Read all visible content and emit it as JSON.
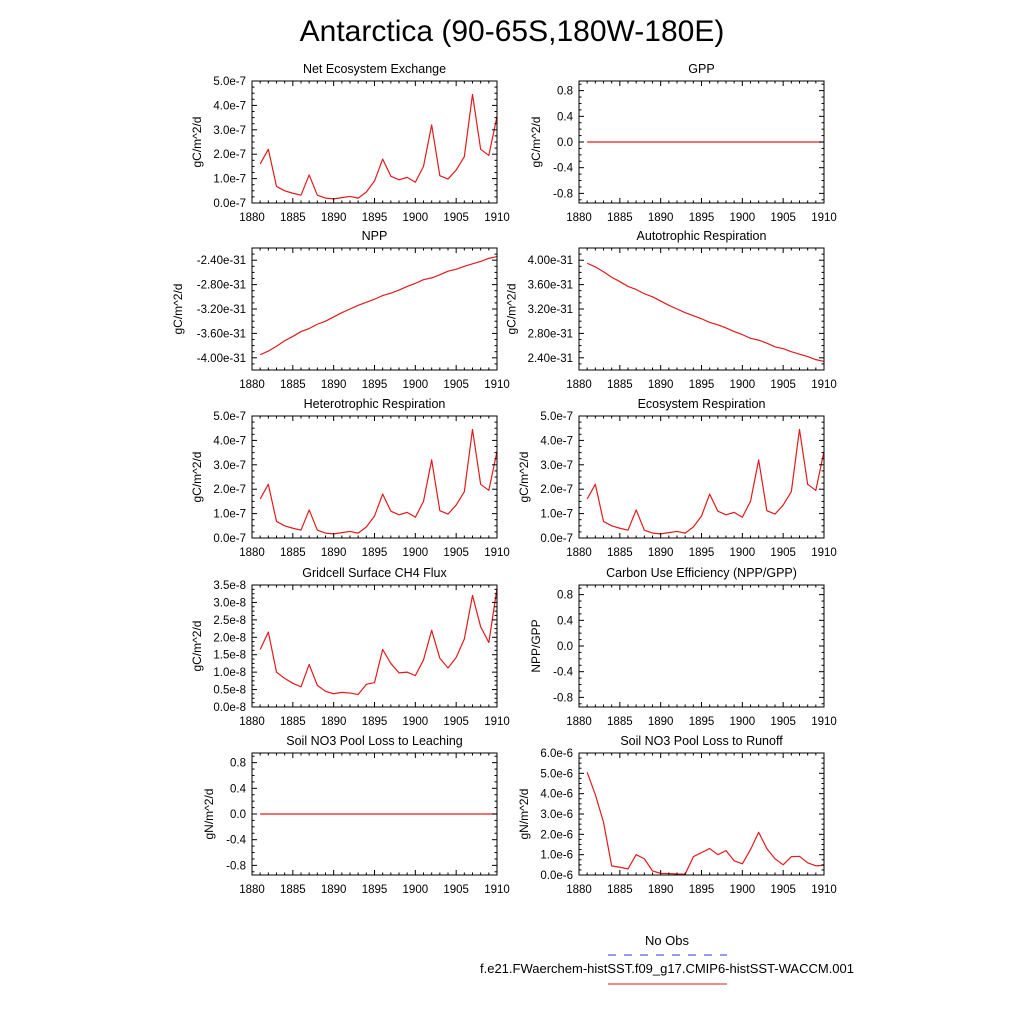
{
  "figure": {
    "title": "Antarctica (90-65S,180W-180E)"
  },
  "legend": {
    "items": [
      {
        "label": "No Obs",
        "color": "#3333cc",
        "style": "dashed"
      },
      {
        "label": "f.e21.FWaerchem-histSST.f09_g17.CMIP6-histSST-WACCM.001",
        "color": "#e31a1c",
        "style": "solid"
      }
    ]
  },
  "colors": {
    "series": "#e31a1c",
    "axis": "#000000"
  },
  "chart_data": [
    {
      "type": "line",
      "title": "Net Ecosystem Exchange",
      "ylabel": "gC/m^2/d",
      "xlim": [
        1880,
        1910
      ],
      "ylim": [
        0,
        5e-07
      ],
      "xticks": [
        1880,
        1885,
        1890,
        1895,
        1900,
        1905,
        1910
      ],
      "yticks": [
        0,
        1e-07,
        2e-07,
        3e-07,
        4e-07,
        5e-07
      ],
      "ytick_labels": [
        "0.0e-7",
        "1.0e-7",
        "2.0e-7",
        "3.0e-7",
        "4.0e-7",
        "5.0e-7"
      ],
      "x": [
        1881,
        1882,
        1883,
        1884,
        1885,
        1886,
        1887,
        1888,
        1889,
        1890,
        1891,
        1892,
        1893,
        1894,
        1895,
        1896,
        1897,
        1898,
        1899,
        1900,
        1901,
        1902,
        1903,
        1904,
        1905,
        1906,
        1907,
        1908,
        1909,
        1910
      ],
      "y": [
        1.6e-07,
        2.2e-07,
        6.8e-08,
        5e-08,
        4e-08,
        3.2e-08,
        1.15e-07,
        3.2e-08,
        2e-08,
        1.7e-08,
        2.2e-08,
        2.7e-08,
        2e-08,
        4.5e-08,
        9e-08,
        1.8e-07,
        1.1e-07,
        9.5e-08,
        1.05e-07,
        8.5e-08,
        1.5e-07,
        3.2e-07,
        1.12e-07,
        9.8e-08,
        1.35e-07,
        1.9e-07,
        4.45e-07,
        2.2e-07,
        1.95e-07,
        3.55e-07
      ]
    },
    {
      "type": "line",
      "title": "GPP",
      "ylabel": "gC/m^2/d",
      "xlim": [
        1880,
        1910
      ],
      "ylim": [
        -0.95,
        0.95
      ],
      "xticks": [
        1880,
        1885,
        1890,
        1895,
        1900,
        1905,
        1910
      ],
      "yticks": [
        -0.8,
        -0.4,
        0,
        0.4,
        0.8
      ],
      "ytick_labels": [
        "-0.8",
        "-0.4",
        "0.0",
        "0.4",
        "0.8"
      ],
      "x": [
        1881,
        1910
      ],
      "y": [
        0,
        0
      ]
    },
    {
      "type": "line",
      "title": "NPP",
      "ylabel": "gC/m^2/d",
      "xlim": [
        1880,
        1910
      ],
      "ylim": [
        -4.2e-31,
        -2.2e-31
      ],
      "xticks": [
        1880,
        1885,
        1890,
        1895,
        1900,
        1905,
        1910
      ],
      "yticks": [
        -4e-31,
        -3.6e-31,
        -3.2e-31,
        -2.8e-31,
        -2.4e-31
      ],
      "ytick_labels": [
        "-4.00e-31",
        "-3.60e-31",
        "-3.20e-31",
        "-2.80e-31",
        "-2.40e-31"
      ],
      "x": [
        1881,
        1882,
        1883,
        1884,
        1885,
        1886,
        1887,
        1888,
        1889,
        1890,
        1891,
        1892,
        1893,
        1894,
        1895,
        1896,
        1897,
        1898,
        1899,
        1900,
        1901,
        1902,
        1903,
        1904,
        1905,
        1906,
        1907,
        1908,
        1909,
        1910
      ],
      "y": [
        -3.95e-31,
        -3.89e-31,
        -3.81e-31,
        -3.72e-31,
        -3.65e-31,
        -3.57e-31,
        -3.52e-31,
        -3.45e-31,
        -3.4e-31,
        -3.33e-31,
        -3.26e-31,
        -3.2e-31,
        -3.14e-31,
        -3.09e-31,
        -3.04e-31,
        -2.98e-31,
        -2.94e-31,
        -2.89e-31,
        -2.83e-31,
        -2.78e-31,
        -2.72e-31,
        -2.69e-31,
        -2.64e-31,
        -2.58e-31,
        -2.55e-31,
        -2.5e-31,
        -2.46e-31,
        -2.42e-31,
        -2.37e-31,
        -2.34e-31
      ]
    },
    {
      "type": "line",
      "title": "Autotrophic Respiration",
      "ylabel": "gC/m^2/d",
      "xlim": [
        1880,
        1910
      ],
      "ylim": [
        2.2e-31,
        4.2e-31
      ],
      "xticks": [
        1880,
        1885,
        1890,
        1895,
        1900,
        1905,
        1910
      ],
      "yticks": [
        2.4e-31,
        2.8e-31,
        3.2e-31,
        3.6e-31,
        4e-31
      ],
      "ytick_labels": [
        "2.40e-31",
        "2.80e-31",
        "3.20e-31",
        "3.60e-31",
        "4.00e-31"
      ],
      "x": [
        1881,
        1882,
        1883,
        1884,
        1885,
        1886,
        1887,
        1888,
        1889,
        1890,
        1891,
        1892,
        1893,
        1894,
        1895,
        1896,
        1897,
        1898,
        1899,
        1900,
        1901,
        1902,
        1903,
        1904,
        1905,
        1906,
        1907,
        1908,
        1909,
        1910
      ],
      "y": [
        3.95e-31,
        3.89e-31,
        3.81e-31,
        3.72e-31,
        3.65e-31,
        3.57e-31,
        3.52e-31,
        3.45e-31,
        3.4e-31,
        3.33e-31,
        3.26e-31,
        3.2e-31,
        3.14e-31,
        3.09e-31,
        3.04e-31,
        2.98e-31,
        2.94e-31,
        2.89e-31,
        2.83e-31,
        2.78e-31,
        2.72e-31,
        2.69e-31,
        2.64e-31,
        2.58e-31,
        2.55e-31,
        2.5e-31,
        2.46e-31,
        2.42e-31,
        2.37e-31,
        2.34e-31
      ]
    },
    {
      "type": "line",
      "title": "Heterotrophic Respiration",
      "ylabel": "gC/m^2/d",
      "xlim": [
        1880,
        1910
      ],
      "ylim": [
        0,
        5e-07
      ],
      "xticks": [
        1880,
        1885,
        1890,
        1895,
        1900,
        1905,
        1910
      ],
      "yticks": [
        0,
        1e-07,
        2e-07,
        3e-07,
        4e-07,
        5e-07
      ],
      "ytick_labels": [
        "0.0e-7",
        "1.0e-7",
        "2.0e-7",
        "3.0e-7",
        "4.0e-7",
        "5.0e-7"
      ],
      "x": [
        1881,
        1882,
        1883,
        1884,
        1885,
        1886,
        1887,
        1888,
        1889,
        1890,
        1891,
        1892,
        1893,
        1894,
        1895,
        1896,
        1897,
        1898,
        1899,
        1900,
        1901,
        1902,
        1903,
        1904,
        1905,
        1906,
        1907,
        1908,
        1909,
        1910
      ],
      "y": [
        1.6e-07,
        2.2e-07,
        6.8e-08,
        5e-08,
        4e-08,
        3.2e-08,
        1.15e-07,
        3.2e-08,
        2e-08,
        1.7e-08,
        2.2e-08,
        2.7e-08,
        2e-08,
        4.5e-08,
        9e-08,
        1.8e-07,
        1.1e-07,
        9.5e-08,
        1.05e-07,
        8.5e-08,
        1.5e-07,
        3.2e-07,
        1.12e-07,
        9.8e-08,
        1.35e-07,
        1.9e-07,
        4.45e-07,
        2.2e-07,
        1.95e-07,
        3.55e-07
      ]
    },
    {
      "type": "line",
      "title": "Ecosystem Respiration",
      "ylabel": "gC/m^2/d",
      "xlim": [
        1880,
        1910
      ],
      "ylim": [
        0,
        5e-07
      ],
      "xticks": [
        1880,
        1885,
        1890,
        1895,
        1900,
        1905,
        1910
      ],
      "yticks": [
        0,
        1e-07,
        2e-07,
        3e-07,
        4e-07,
        5e-07
      ],
      "ytick_labels": [
        "0.0e-7",
        "1.0e-7",
        "2.0e-7",
        "3.0e-7",
        "4.0e-7",
        "5.0e-7"
      ],
      "x": [
        1881,
        1882,
        1883,
        1884,
        1885,
        1886,
        1887,
        1888,
        1889,
        1890,
        1891,
        1892,
        1893,
        1894,
        1895,
        1896,
        1897,
        1898,
        1899,
        1900,
        1901,
        1902,
        1903,
        1904,
        1905,
        1906,
        1907,
        1908,
        1909,
        1910
      ],
      "y": [
        1.6e-07,
        2.2e-07,
        6.8e-08,
        5e-08,
        4e-08,
        3.2e-08,
        1.15e-07,
        3.2e-08,
        2e-08,
        1.7e-08,
        2.2e-08,
        2.7e-08,
        2e-08,
        4.5e-08,
        9e-08,
        1.8e-07,
        1.1e-07,
        9.5e-08,
        1.05e-07,
        8.5e-08,
        1.5e-07,
        3.2e-07,
        1.12e-07,
        9.8e-08,
        1.35e-07,
        1.9e-07,
        4.45e-07,
        2.2e-07,
        1.95e-07,
        3.55e-07
      ]
    },
    {
      "type": "line",
      "title": "Gridcell Surface CH4 Flux",
      "ylabel": "gC/m^2/d",
      "xlim": [
        1880,
        1910
      ],
      "ylim": [
        0,
        3.5e-08
      ],
      "xticks": [
        1880,
        1885,
        1890,
        1895,
        1900,
        1905,
        1910
      ],
      "yticks": [
        0,
        5e-09,
        1e-08,
        1.5e-08,
        2e-08,
        2.5e-08,
        3e-08,
        3.5e-08
      ],
      "ytick_labels": [
        "0.0e-8",
        "0.5e-8",
        "1.0e-8",
        "1.5e-8",
        "2.0e-8",
        "2.5e-8",
        "3.0e-8",
        "3.5e-8"
      ],
      "x": [
        1881,
        1882,
        1883,
        1884,
        1885,
        1886,
        1887,
        1888,
        1889,
        1890,
        1891,
        1892,
        1893,
        1894,
        1895,
        1896,
        1897,
        1898,
        1899,
        1900,
        1901,
        1902,
        1903,
        1904,
        1905,
        1906,
        1907,
        1908,
        1909,
        1910
      ],
      "y": [
        1.65e-08,
        2.15e-08,
        1e-08,
        8.2e-09,
        6.8e-09,
        5.8e-09,
        1.22e-08,
        6.2e-09,
        4.5e-09,
        3.8e-09,
        4.2e-09,
        4e-09,
        3.6e-09,
        6.5e-09,
        7e-09,
        1.65e-08,
        1.25e-08,
        9.8e-09,
        1e-08,
        9e-09,
        1.35e-08,
        2.2e-08,
        1.4e-08,
        1.12e-08,
        1.42e-08,
        1.95e-08,
        3.2e-08,
        2.3e-08,
        1.85e-08,
        3.4e-08
      ]
    },
    {
      "type": "line",
      "title": "Carbon Use Efficiency (NPP/GPP)",
      "ylabel": "NPP/GPP",
      "xlim": [
        1880,
        1910
      ],
      "ylim": [
        -0.95,
        0.95
      ],
      "xticks": [
        1880,
        1885,
        1890,
        1895,
        1900,
        1905,
        1910
      ],
      "yticks": [
        -0.8,
        -0.4,
        0,
        0.4,
        0.8
      ],
      "ytick_labels": [
        "-0.8",
        "-0.4",
        "0.0",
        "0.4",
        "0.8"
      ],
      "x": [],
      "y": []
    },
    {
      "type": "line",
      "title": "Soil NO3 Pool Loss to Leaching",
      "ylabel": "gN/m^2/d",
      "xlim": [
        1880,
        1910
      ],
      "ylim": [
        -0.95,
        0.95
      ],
      "xticks": [
        1880,
        1885,
        1890,
        1895,
        1900,
        1905,
        1910
      ],
      "yticks": [
        -0.8,
        -0.4,
        0,
        0.4,
        0.8
      ],
      "ytick_labels": [
        "-0.8",
        "-0.4",
        "0.0",
        "0.4",
        "0.8"
      ],
      "x": [
        1881,
        1910
      ],
      "y": [
        0,
        0
      ]
    },
    {
      "type": "line",
      "title": "Soil NO3 Pool Loss to Runoff",
      "ylabel": "gN/m^2/d",
      "xlim": [
        1880,
        1910
      ],
      "ylim": [
        0,
        6e-06
      ],
      "xticks": [
        1880,
        1885,
        1890,
        1895,
        1900,
        1905,
        1910
      ],
      "yticks": [
        0,
        1e-06,
        2e-06,
        3e-06,
        4e-06,
        5e-06,
        6e-06
      ],
      "ytick_labels": [
        "0.0e-6",
        "1.0e-6",
        "2.0e-6",
        "3.0e-6",
        "4.0e-6",
        "5.0e-6",
        "6.0e-6"
      ],
      "x": [
        1881,
        1882,
        1883,
        1884,
        1885,
        1886,
        1887,
        1888,
        1889,
        1890,
        1891,
        1892,
        1893,
        1894,
        1895,
        1896,
        1897,
        1898,
        1899,
        1900,
        1901,
        1902,
        1903,
        1904,
        1905,
        1906,
        1907,
        1908,
        1909,
        1910
      ],
      "y": [
        5.05e-06,
        3.95e-06,
        2.6e-06,
        4.5e-07,
        3.8e-07,
        3e-07,
        1e-06,
        8e-07,
        2e-07,
        8e-08,
        7e-08,
        5e-08,
        4e-08,
        9e-07,
        1.1e-06,
        1.3e-06,
        1e-06,
        1.2e-06,
        7e-07,
        5.5e-07,
        1.25e-06,
        2.1e-06,
        1.3e-06,
        8e-07,
        5e-07,
        9e-07,
        9.2e-07,
        6e-07,
        4.5e-07,
        4.8e-07
      ]
    }
  ]
}
